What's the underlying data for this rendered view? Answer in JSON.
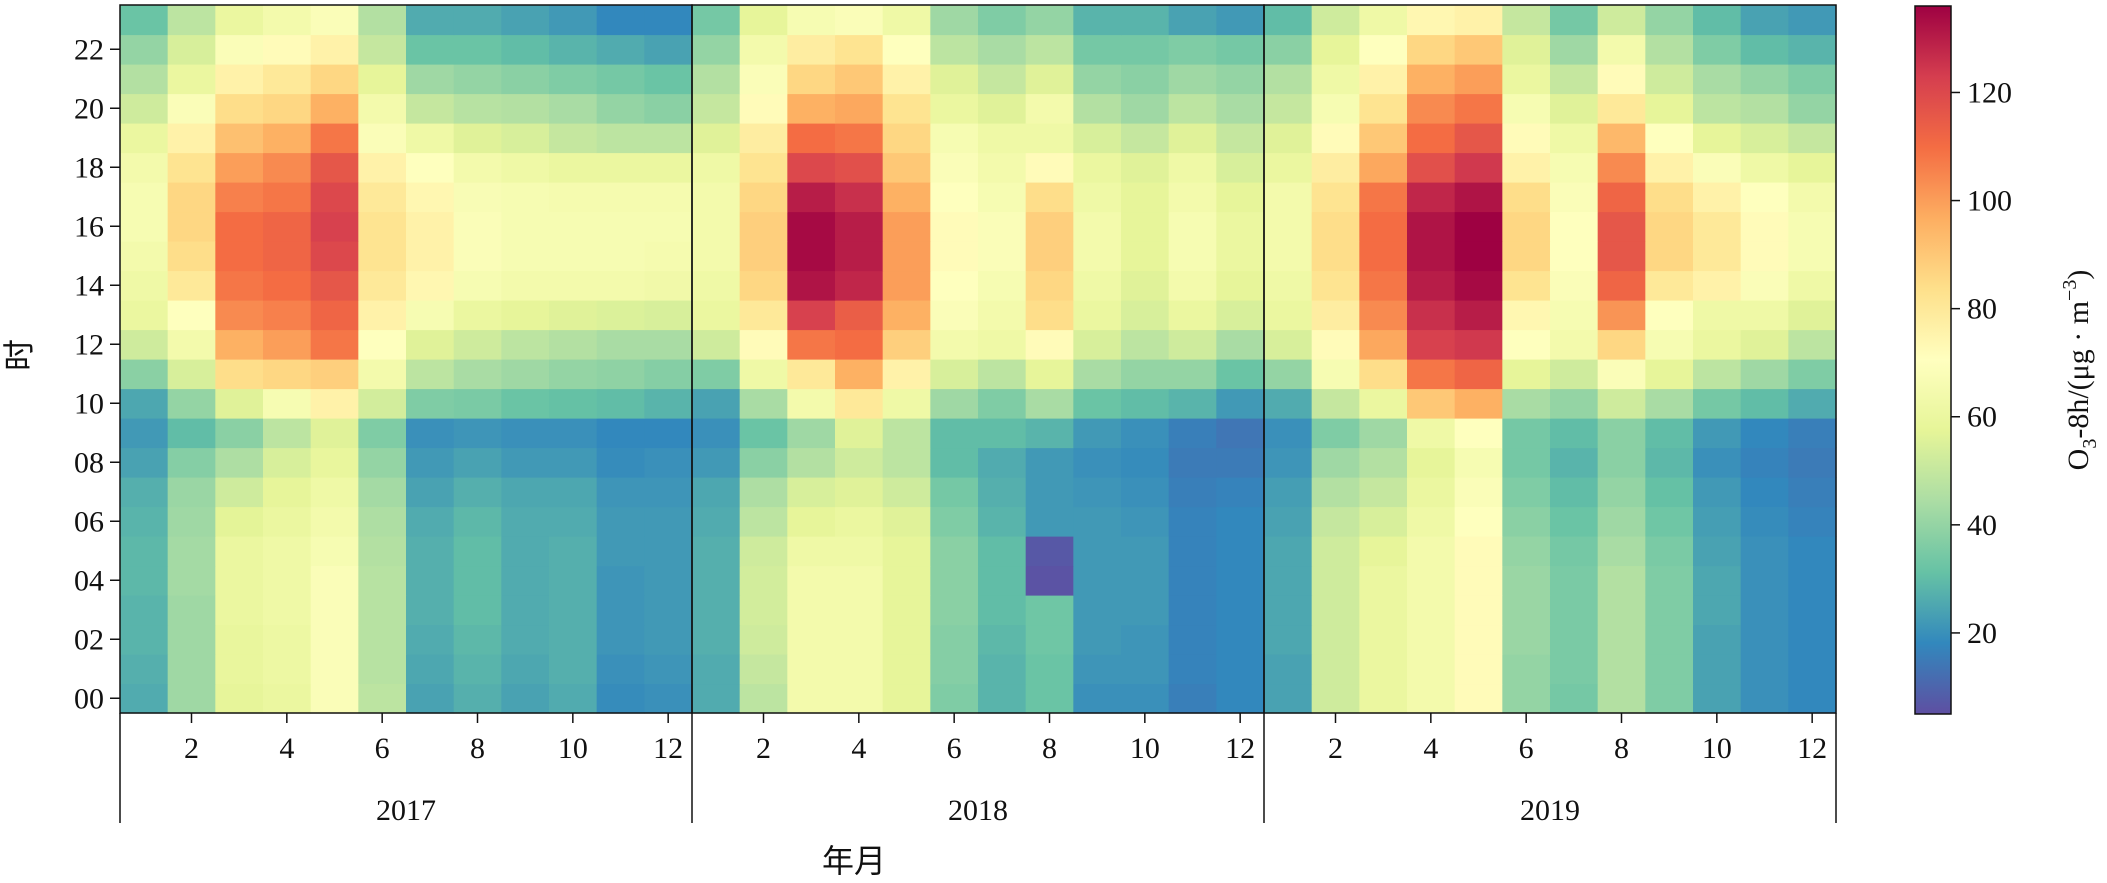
{
  "chart_data": {
    "type": "heatmap",
    "title": "",
    "xlabel": "年月",
    "ylabel": "时",
    "colorbar_label": "O₃-8h/(μg · m⁻³)",
    "colorbar_label_parts": {
      "base": "O",
      "sub": "3",
      "mid": "-8h/(μg · m",
      "sup": "−3",
      "end": ")"
    },
    "colorbar_range": [
      5,
      136
    ],
    "colorbar_ticks": [
      20,
      40,
      60,
      80,
      100,
      120
    ],
    "colorbar_tick_labels": [
      "20",
      "40",
      "60",
      "80",
      "100",
      "120"
    ],
    "colormap": "Spectral_r",
    "colormap_stops": [
      "#5e4fa2",
      "#3288bd",
      "#66c2a5",
      "#abdda4",
      "#e6f598",
      "#ffffbf",
      "#fee08b",
      "#fdae61",
      "#f46d43",
      "#d53e4f",
      "#9e0142"
    ],
    "hours": [
      "00",
      "01",
      "02",
      "03",
      "04",
      "05",
      "06",
      "07",
      "08",
      "09",
      "10",
      "11",
      "12",
      "13",
      "14",
      "15",
      "16",
      "17",
      "18",
      "19",
      "20",
      "21",
      "22",
      "23"
    ],
    "ytick_labels": [
      "00",
      "02",
      "04",
      "06",
      "08",
      "10",
      "12",
      "14",
      "16",
      "18",
      "20",
      "22"
    ],
    "months": [
      1,
      2,
      3,
      4,
      5,
      6,
      7,
      8,
      9,
      10,
      11,
      12
    ],
    "month_tick_labels": [
      "2",
      "4",
      "6",
      "8",
      "10",
      "12"
    ],
    "years": [
      {
        "label": "2017",
        "values": [
          [
            26,
            42,
            58,
            60,
            68,
            48,
            24,
            27,
            24,
            26,
            19,
            20
          ],
          [
            27,
            42,
            59,
            61,
            68,
            47,
            25,
            28,
            25,
            27,
            20,
            21
          ],
          [
            28,
            42,
            59,
            61,
            68,
            47,
            26,
            29,
            26,
            27,
            21,
            22
          ],
          [
            28,
            42,
            60,
            62,
            68,
            47,
            27,
            30,
            26,
            27,
            21,
            22
          ],
          [
            29,
            43,
            60,
            62,
            68,
            47,
            27,
            30,
            26,
            27,
            21,
            22
          ],
          [
            29,
            43,
            60,
            62,
            66,
            46,
            27,
            30,
            26,
            27,
            22,
            22
          ],
          [
            28,
            42,
            57,
            60,
            64,
            45,
            26,
            29,
            26,
            26,
            22,
            22
          ],
          [
            27,
            41,
            52,
            58,
            62,
            43,
            24,
            27,
            25,
            25,
            21,
            21
          ],
          [
            24,
            37,
            45,
            54,
            59,
            40,
            22,
            24,
            22,
            22,
            19,
            20
          ],
          [
            22,
            30,
            38,
            48,
            56,
            36,
            20,
            21,
            20,
            20,
            18,
            18
          ],
          [
            25,
            40,
            56,
            66,
            76,
            53,
            36,
            35,
            32,
            31,
            30,
            28
          ],
          [
            38,
            54,
            84,
            86,
            88,
            64,
            48,
            44,
            42,
            40,
            39,
            37
          ],
          [
            52,
            64,
            96,
            100,
            108,
            70,
            56,
            52,
            48,
            46,
            44,
            44
          ],
          [
            60,
            70,
            104,
            106,
            112,
            76,
            66,
            60,
            58,
            56,
            55,
            54
          ],
          [
            62,
            80,
            108,
            110,
            116,
            80,
            74,
            66,
            64,
            64,
            64,
            63
          ],
          [
            64,
            84,
            110,
            112,
            120,
            82,
            76,
            68,
            66,
            66,
            66,
            65
          ],
          [
            66,
            86,
            110,
            112,
            122,
            82,
            76,
            68,
            66,
            66,
            66,
            66
          ],
          [
            66,
            86,
            106,
            108,
            120,
            80,
            74,
            67,
            66,
            65,
            65,
            65
          ],
          [
            64,
            82,
            100,
            104,
            116,
            76,
            70,
            64,
            62,
            60,
            60,
            60
          ],
          [
            60,
            76,
            92,
            96,
            108,
            68,
            62,
            56,
            54,
            50,
            48,
            48
          ],
          [
            52,
            68,
            84,
            86,
            96,
            64,
            50,
            47,
            46,
            44,
            40,
            38
          ],
          [
            46,
            60,
            76,
            80,
            86,
            58,
            42,
            40,
            38,
            36,
            34,
            32
          ],
          [
            40,
            54,
            68,
            72,
            76,
            50,
            32,
            32,
            30,
            28,
            26,
            24
          ],
          [
            32,
            48,
            60,
            64,
            68,
            46,
            26,
            26,
            24,
            22,
            18,
            18
          ]
        ]
      },
      {
        "label": "2018",
        "values": [
          [
            26,
            48,
            64,
            64,
            58,
            36,
            28,
            32,
            20,
            20,
            16,
            18
          ],
          [
            26,
            50,
            64,
            64,
            58,
            37,
            28,
            32,
            21,
            21,
            17,
            18
          ],
          [
            27,
            52,
            64,
            64,
            58,
            37,
            29,
            33,
            22,
            21,
            17,
            18
          ],
          [
            27,
            53,
            64,
            64,
            58,
            38,
            30,
            33,
            22,
            22,
            17,
            18
          ],
          [
            27,
            53,
            64,
            64,
            58,
            38,
            30,
            6,
            22,
            22,
            17,
            18
          ],
          [
            27,
            52,
            62,
            62,
            58,
            38,
            30,
            7,
            22,
            22,
            17,
            18
          ],
          [
            26,
            48,
            58,
            60,
            56,
            36,
            28,
            22,
            22,
            21,
            17,
            18
          ],
          [
            25,
            45,
            54,
            56,
            52,
            34,
            27,
            22,
            21,
            20,
            16,
            17
          ],
          [
            22,
            38,
            46,
            52,
            48,
            30,
            26,
            22,
            20,
            19,
            15,
            15
          ],
          [
            20,
            32,
            42,
            56,
            48,
            30,
            30,
            28,
            22,
            20,
            16,
            14
          ],
          [
            24,
            44,
            64,
            80,
            62,
            42,
            36,
            44,
            32,
            30,
            28,
            22
          ],
          [
            36,
            62,
            80,
            96,
            76,
            54,
            48,
            58,
            44,
            40,
            40,
            32
          ],
          [
            52,
            72,
            108,
            110,
            88,
            64,
            62,
            72,
            54,
            48,
            52,
            44
          ],
          [
            60,
            80,
            122,
            114,
            96,
            68,
            64,
            84,
            60,
            54,
            60,
            54
          ],
          [
            62,
            86,
            132,
            128,
            100,
            70,
            66,
            86,
            62,
            56,
            64,
            58
          ],
          [
            64,
            88,
            134,
            130,
            100,
            72,
            68,
            88,
            64,
            58,
            66,
            60
          ],
          [
            64,
            88,
            134,
            130,
            100,
            72,
            68,
            88,
            64,
            58,
            66,
            60
          ],
          [
            64,
            86,
            130,
            126,
            96,
            70,
            66,
            84,
            62,
            58,
            64,
            58
          ],
          [
            62,
            82,
            120,
            118,
            90,
            68,
            64,
            72,
            60,
            56,
            62,
            54
          ],
          [
            56,
            78,
            110,
            108,
            86,
            66,
            62,
            62,
            54,
            50,
            56,
            50
          ],
          [
            50,
            72,
            96,
            98,
            82,
            60,
            56,
            64,
            46,
            42,
            48,
            44
          ],
          [
            46,
            68,
            86,
            90,
            76,
            56,
            50,
            56,
            40,
            38,
            42,
            40
          ],
          [
            40,
            64,
            78,
            82,
            70,
            48,
            44,
            48,
            34,
            34,
            36,
            34
          ],
          [
            34,
            58,
            66,
            68,
            62,
            42,
            36,
            40,
            28,
            28,
            24,
            22
          ]
        ]
      },
      {
        "label": "2019",
        "values": [
          [
            24,
            52,
            60,
            64,
            72,
            40,
            34,
            46,
            36,
            24,
            20,
            18
          ],
          [
            24,
            52,
            60,
            64,
            72,
            40,
            35,
            46,
            36,
            24,
            20,
            18
          ],
          [
            25,
            52,
            60,
            64,
            72,
            41,
            35,
            46,
            36,
            24,
            20,
            18
          ],
          [
            25,
            52,
            60,
            64,
            72,
            41,
            35,
            46,
            36,
            25,
            20,
            18
          ],
          [
            25,
            52,
            60,
            64,
            72,
            41,
            35,
            46,
            36,
            25,
            20,
            18
          ],
          [
            25,
            52,
            58,
            64,
            72,
            40,
            34,
            44,
            35,
            24,
            20,
            18
          ],
          [
            24,
            50,
            54,
            62,
            70,
            38,
            32,
            42,
            33,
            23,
            19,
            17
          ],
          [
            23,
            46,
            50,
            60,
            68,
            36,
            30,
            40,
            31,
            22,
            18,
            16
          ],
          [
            21,
            42,
            46,
            58,
            66,
            34,
            28,
            38,
            29,
            20,
            17,
            15
          ],
          [
            20,
            36,
            42,
            62,
            70,
            34,
            30,
            38,
            30,
            22,
            18,
            16
          ],
          [
            26,
            50,
            60,
            90,
            96,
            44,
            40,
            52,
            44,
            34,
            30,
            26
          ],
          [
            40,
            66,
            84,
            108,
            112,
            58,
            52,
            68,
            58,
            48,
            42,
            36
          ],
          [
            54,
            72,
            98,
            122,
            124,
            70,
            64,
            86,
            66,
            60,
            56,
            48
          ],
          [
            60,
            78,
            104,
            126,
            130,
            74,
            66,
            102,
            70,
            62,
            62,
            56
          ],
          [
            62,
            82,
            108,
            130,
            134,
            82,
            68,
            112,
            80,
            76,
            68,
            62
          ],
          [
            64,
            84,
            110,
            132,
            136,
            86,
            70,
            116,
            86,
            80,
            72,
            66
          ],
          [
            64,
            84,
            110,
            132,
            136,
            86,
            70,
            116,
            86,
            80,
            72,
            66
          ],
          [
            64,
            82,
            108,
            128,
            132,
            84,
            68,
            112,
            84,
            76,
            70,
            64
          ],
          [
            60,
            78,
            98,
            118,
            124,
            76,
            66,
            104,
            76,
            68,
            62,
            58
          ],
          [
            56,
            72,
            90,
            110,
            116,
            72,
            62,
            94,
            70,
            58,
            54,
            50
          ],
          [
            50,
            66,
            82,
            104,
            108,
            66,
            56,
            80,
            58,
            48,
            46,
            40
          ],
          [
            46,
            62,
            76,
            96,
            100,
            60,
            50,
            72,
            52,
            44,
            40,
            36
          ],
          [
            38,
            58,
            70,
            86,
            90,
            56,
            42,
            64,
            46,
            36,
            30,
            28
          ],
          [
            30,
            52,
            62,
            74,
            76,
            50,
            34,
            52,
            40,
            30,
            24,
            22
          ]
        ]
      }
    ]
  }
}
